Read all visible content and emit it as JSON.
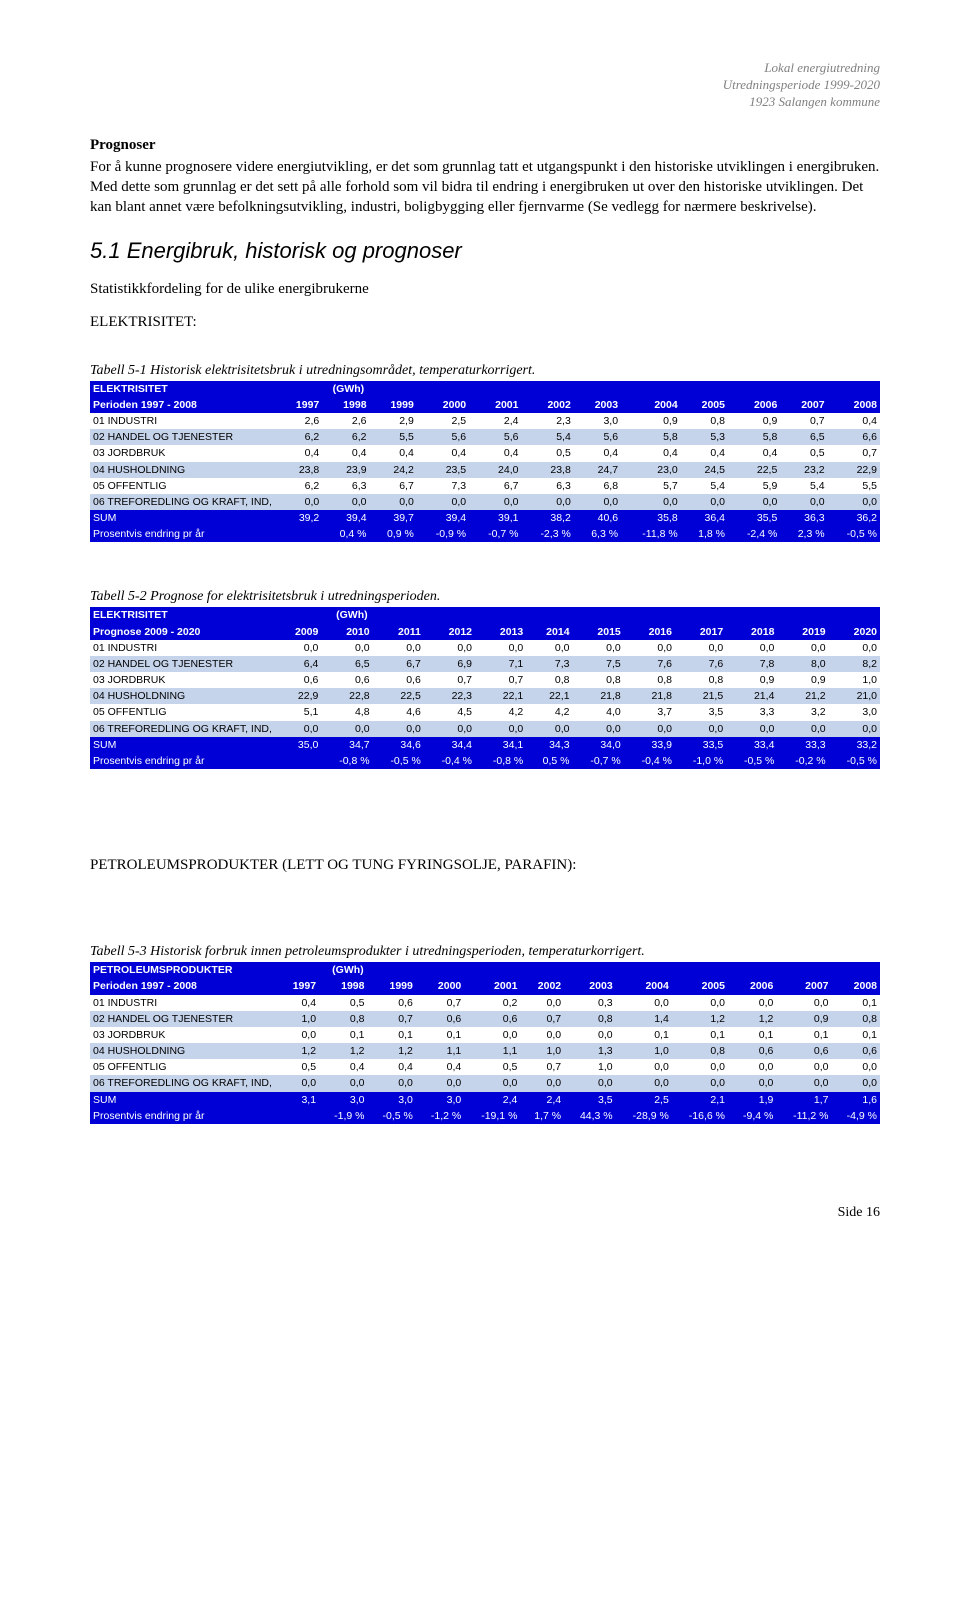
{
  "header": {
    "line1": "Lokal energiutredning",
    "line2": "Utredningsperiode 1999-2020",
    "line3": "1923 Salangen kommune"
  },
  "prognoser": {
    "title": "Prognoser",
    "para": "For å kunne prognosere videre energiutvikling, er det som grunnlag tatt et utgangspunkt i den historiske utviklingen i energibruken. Med dette som grunnlag er det sett på alle forhold som vil bidra til endring i energibruken ut over den historiske utviklingen. Det kan blant annet være befolkningsutvikling, industri, boligbygging eller fjernvarme (Se vedlegg for nærmere beskrivelse)."
  },
  "section51": {
    "heading": "5.1  Energibruk, historisk og prognoser",
    "sub": "Statistikkfordeling for de ulike energibrukerne",
    "label": "ELEKTRISITET:"
  },
  "table1": {
    "caption": "Tabell 5-1 Historisk elektrisitetsbruk i utredningsområdet, temperaturkorrigert.",
    "top_label": "ELEKTRISITET",
    "top_unit": "(GWh)",
    "period_label": "Perioden 1997 - 2008",
    "years": [
      "1997",
      "1998",
      "1999",
      "2000",
      "2001",
      "2002",
      "2003",
      "2004",
      "2005",
      "2006",
      "2007",
      "2008"
    ],
    "rows": [
      {
        "label": "01 INDUSTRI",
        "band": false,
        "v": [
          "2,6",
          "2,6",
          "2,9",
          "2,5",
          "2,4",
          "2,3",
          "3,0",
          "0,9",
          "0,8",
          "0,9",
          "0,7",
          "0,4"
        ]
      },
      {
        "label": "02 HANDEL OG TJENESTER",
        "band": true,
        "v": [
          "6,2",
          "6,2",
          "5,5",
          "5,6",
          "5,6",
          "5,4",
          "5,6",
          "5,8",
          "5,3",
          "5,8",
          "6,5",
          "6,6"
        ]
      },
      {
        "label": "03 JORDBRUK",
        "band": false,
        "v": [
          "0,4",
          "0,4",
          "0,4",
          "0,4",
          "0,4",
          "0,5",
          "0,4",
          "0,4",
          "0,4",
          "0,4",
          "0,5",
          "0,7"
        ]
      },
      {
        "label": "04 HUSHOLDNING",
        "band": true,
        "v": [
          "23,8",
          "23,9",
          "24,2",
          "23,5",
          "24,0",
          "23,8",
          "24,7",
          "23,0",
          "24,5",
          "22,5",
          "23,2",
          "22,9"
        ]
      },
      {
        "label": "05 OFFENTLIG",
        "band": false,
        "v": [
          "6,2",
          "6,3",
          "6,7",
          "7,3",
          "6,7",
          "6,3",
          "6,8",
          "5,7",
          "5,4",
          "5,9",
          "5,4",
          "5,5"
        ]
      },
      {
        "label": "06 TREFOREDLING OG KRAFT, IND,",
        "band": true,
        "v": [
          "0,0",
          "0,0",
          "0,0",
          "0,0",
          "0,0",
          "0,0",
          "0,0",
          "0,0",
          "0,0",
          "0,0",
          "0,0",
          "0,0"
        ]
      }
    ],
    "sum_label": "SUM",
    "sum": [
      "39,2",
      "39,4",
      "39,7",
      "39,4",
      "39,1",
      "38,2",
      "40,6",
      "35,8",
      "36,4",
      "35,5",
      "36,3",
      "36,2"
    ],
    "pct_label": "Prosentvis endring pr år",
    "pct": [
      "",
      "0,4 %",
      "0,9 %",
      "-0,9 %",
      "-0,7 %",
      "-2,3 %",
      "6,3 %",
      "-11,8 %",
      "1,8 %",
      "-2,4 %",
      "2,3 %",
      "-0,5 %"
    ]
  },
  "table2": {
    "caption": "Tabell 5-2 Prognose for elektrisitetsbruk i utredningsperioden.",
    "top_label": "ELEKTRISITET",
    "top_unit": "(GWh)",
    "period_label": "Prognose 2009 - 2020",
    "years": [
      "2009",
      "2010",
      "2011",
      "2012",
      "2013",
      "2014",
      "2015",
      "2016",
      "2017",
      "2018",
      "2019",
      "2020"
    ],
    "rows": [
      {
        "label": "01 INDUSTRI",
        "band": false,
        "v": [
          "0,0",
          "0,0",
          "0,0",
          "0,0",
          "0,0",
          "0,0",
          "0,0",
          "0,0",
          "0,0",
          "0,0",
          "0,0",
          "0,0"
        ]
      },
      {
        "label": "02 HANDEL OG TJENESTER",
        "band": true,
        "v": [
          "6,4",
          "6,5",
          "6,7",
          "6,9",
          "7,1",
          "7,3",
          "7,5",
          "7,6",
          "7,6",
          "7,8",
          "8,0",
          "8,2"
        ]
      },
      {
        "label": "03 JORDBRUK",
        "band": false,
        "v": [
          "0,6",
          "0,6",
          "0,6",
          "0,7",
          "0,7",
          "0,8",
          "0,8",
          "0,8",
          "0,8",
          "0,9",
          "0,9",
          "1,0"
        ]
      },
      {
        "label": "04 HUSHOLDNING",
        "band": true,
        "v": [
          "22,9",
          "22,8",
          "22,5",
          "22,3",
          "22,1",
          "22,1",
          "21,8",
          "21,8",
          "21,5",
          "21,4",
          "21,2",
          "21,0"
        ]
      },
      {
        "label": "05 OFFENTLIG",
        "band": false,
        "v": [
          "5,1",
          "4,8",
          "4,6",
          "4,5",
          "4,2",
          "4,2",
          "4,0",
          "3,7",
          "3,5",
          "3,3",
          "3,2",
          "3,0"
        ]
      },
      {
        "label": "06 TREFOREDLING OG KRAFT, IND,",
        "band": true,
        "v": [
          "0,0",
          "0,0",
          "0,0",
          "0,0",
          "0,0",
          "0,0",
          "0,0",
          "0,0",
          "0,0",
          "0,0",
          "0,0",
          "0,0"
        ]
      }
    ],
    "sum_label": "SUM",
    "sum": [
      "35,0",
      "34,7",
      "34,6",
      "34,4",
      "34,1",
      "34,3",
      "34,0",
      "33,9",
      "33,5",
      "33,4",
      "33,3",
      "33,2"
    ],
    "pct_label": "Prosentvis endring pr år",
    "pct": [
      "",
      "-0,8 %",
      "-0,5 %",
      "-0,4 %",
      "-0,8 %",
      "0,5 %",
      "-0,7 %",
      "-0,4 %",
      "-1,0 %",
      "-0,5 %",
      "-0,2 %",
      "-0,5 %"
    ]
  },
  "petrol_heading": "PETROLEUMSPRODUKTER (LETT OG TUNG FYRINGSOLJE, PARAFIN):",
  "table3": {
    "caption": "Tabell 5-3 Historisk forbruk innen petroleumsprodukter i utredningsperioden, temperaturkorrigert.",
    "top_label": "PETROLEUMSPRODUKTER",
    "top_unit": "(GWh)",
    "period_label": "Perioden 1997 - 2008",
    "years": [
      "1997",
      "1998",
      "1999",
      "2000",
      "2001",
      "2002",
      "2003",
      "2004",
      "2005",
      "2006",
      "2007",
      "2008"
    ],
    "rows": [
      {
        "label": "01 INDUSTRI",
        "band": false,
        "v": [
          "0,4",
          "0,5",
          "0,6",
          "0,7",
          "0,2",
          "0,0",
          "0,3",
          "0,0",
          "0,0",
          "0,0",
          "0,0",
          "0,1"
        ]
      },
      {
        "label": "02 HANDEL OG TJENESTER",
        "band": true,
        "v": [
          "1,0",
          "0,8",
          "0,7",
          "0,6",
          "0,6",
          "0,7",
          "0,8",
          "1,4",
          "1,2",
          "1,2",
          "0,9",
          "0,8"
        ]
      },
      {
        "label": "03 JORDBRUK",
        "band": false,
        "v": [
          "0,0",
          "0,1",
          "0,1",
          "0,1",
          "0,0",
          "0,0",
          "0,0",
          "0,1",
          "0,1",
          "0,1",
          "0,1",
          "0,1"
        ]
      },
      {
        "label": "04 HUSHOLDNING",
        "band": true,
        "v": [
          "1,2",
          "1,2",
          "1,2",
          "1,1",
          "1,1",
          "1,0",
          "1,3",
          "1,0",
          "0,8",
          "0,6",
          "0,6",
          "0,6"
        ]
      },
      {
        "label": "05 OFFENTLIG",
        "band": false,
        "v": [
          "0,5",
          "0,4",
          "0,4",
          "0,4",
          "0,5",
          "0,7",
          "1,0",
          "0,0",
          "0,0",
          "0,0",
          "0,0",
          "0,0"
        ]
      },
      {
        "label": "06 TREFOREDLING OG KRAFT, IND,",
        "band": true,
        "v": [
          "0,0",
          "0,0",
          "0,0",
          "0,0",
          "0,0",
          "0,0",
          "0,0",
          "0,0",
          "0,0",
          "0,0",
          "0,0",
          "0,0"
        ]
      }
    ],
    "sum_label": "SUM",
    "sum": [
      "3,1",
      "3,0",
      "3,0",
      "3,0",
      "2,4",
      "2,4",
      "3,5",
      "2,5",
      "2,1",
      "1,9",
      "1,7",
      "1,6"
    ],
    "pct_label": "Prosentvis endring pr år",
    "pct": [
      "",
      "-1,9 %",
      "-0,5 %",
      "-1,2 %",
      "-19,1 %",
      "1,7 %",
      "44,3 %",
      "-28,9 %",
      "-16,6 %",
      "-9,4 %",
      "-11,2 %",
      "-4,9 %"
    ]
  },
  "footer": "Side  16"
}
